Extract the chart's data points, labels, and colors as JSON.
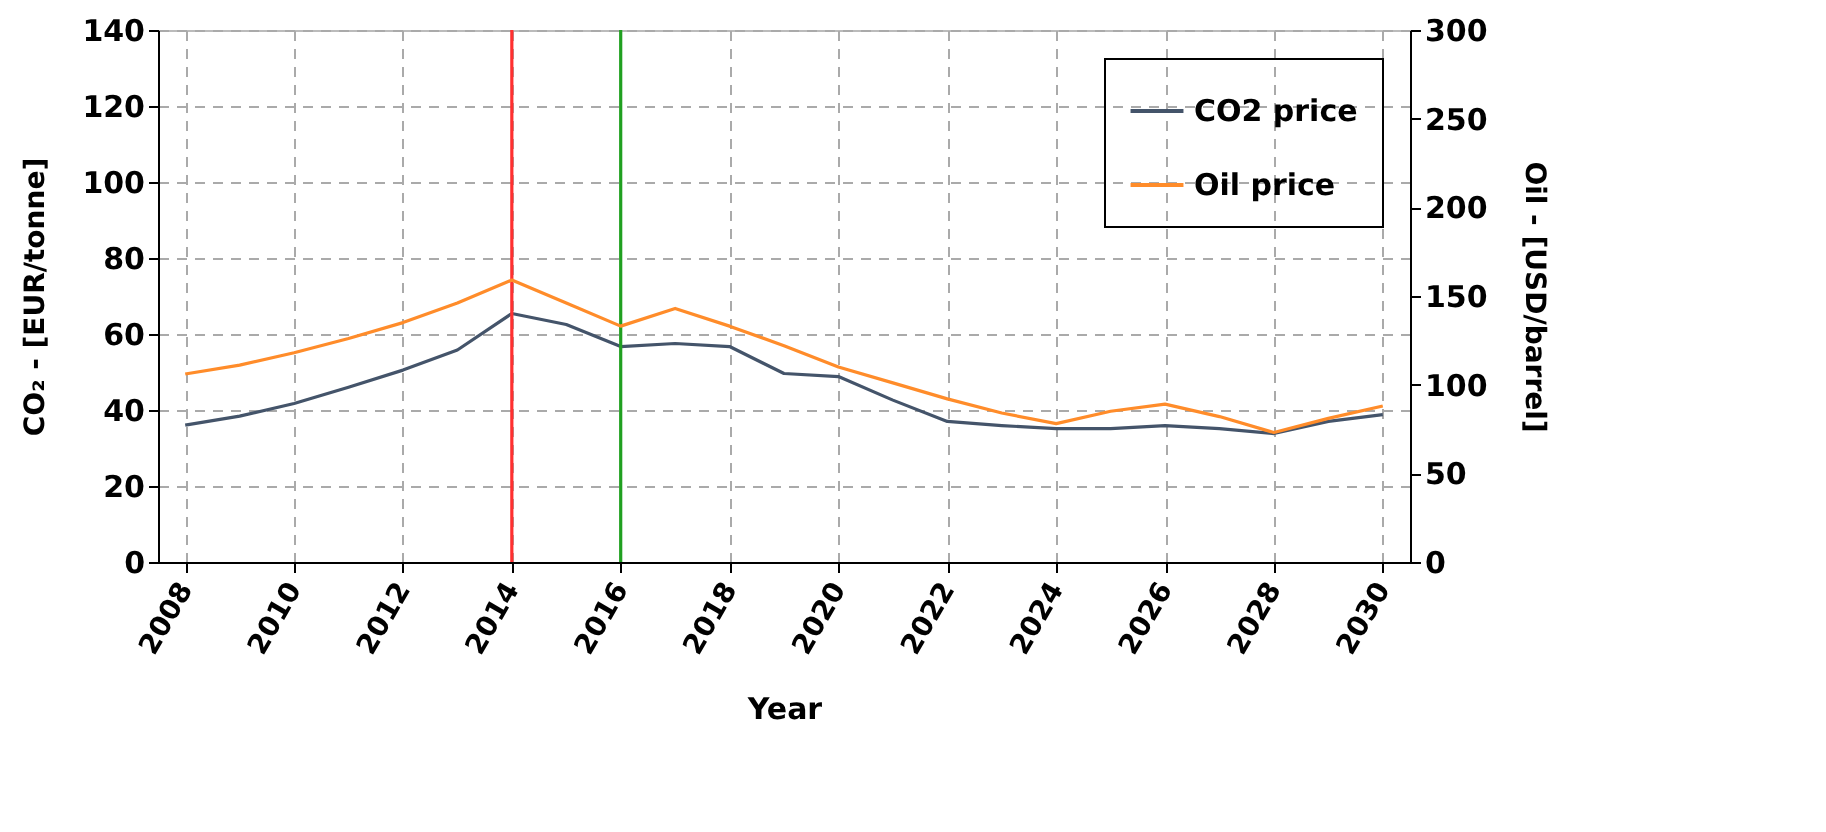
{
  "chart_data": {
    "type": "line",
    "xlabel": "Year",
    "ylabel": "CO₂ - [EUR/tonne]",
    "y2label": "Oil - [USD/barrel]",
    "x": [
      2008,
      2009,
      2010,
      2011,
      2012,
      2013,
      2014,
      2015,
      2016,
      2017,
      2018,
      2019,
      2020,
      2021,
      2022,
      2023,
      2024,
      2025,
      2026,
      2027,
      2028,
      2029,
      2030
    ],
    "series": [
      {
        "name": "CO2 price",
        "color": "#44546a",
        "values": [
          36,
          38.4,
          41.7,
          46,
          50.5,
          55.8,
          65.4,
          62.5,
          56.7,
          57.5,
          56.7,
          49.6,
          48.8,
          42.6,
          37,
          35.9,
          35.1,
          35.1,
          35.9,
          35.1,
          33.8,
          37,
          38.8
        ]
      },
      {
        "name": "Oil price",
        "color": "#ff8c2a",
        "axis": "y2",
        "values": [
          106,
          111,
          118,
          126,
          135,
          146,
          159,
          146,
          133,
          143,
          133,
          122,
          110,
          101,
          92,
          84,
          78,
          85,
          89,
          82,
          73,
          81,
          88
        ]
      }
    ],
    "xlim": [
      2007.5,
      2030.5
    ],
    "xticks": [
      2008,
      2010,
      2012,
      2014,
      2016,
      2018,
      2020,
      2022,
      2024,
      2026,
      2028,
      2030
    ],
    "ylim": [
      0,
      140
    ],
    "yticks": [
      0,
      20,
      40,
      60,
      80,
      100,
      120,
      140
    ],
    "y2lim": [
      0,
      300
    ],
    "y2ticks": [
      0,
      50,
      100,
      150,
      200,
      250,
      300
    ],
    "ref_lines": [
      {
        "axis": "x",
        "value": 2014,
        "color": "#ff3030"
      },
      {
        "axis": "x",
        "value": 2016,
        "color": "#20a020"
      }
    ],
    "grid": true,
    "legend": "top right",
    "marker": "none"
  }
}
